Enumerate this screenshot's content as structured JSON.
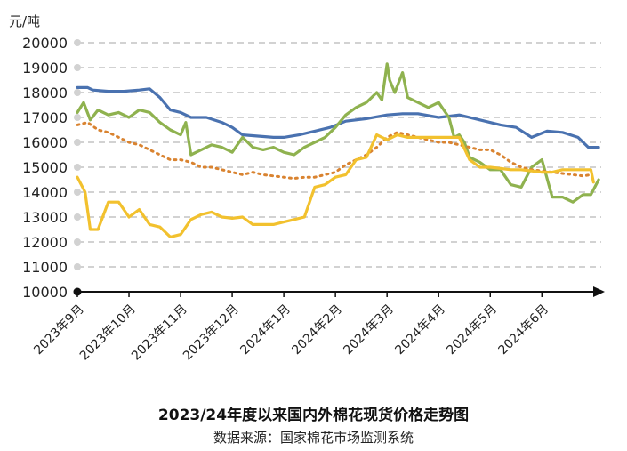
{
  "chart_data": {
    "type": "line",
    "title": "2023/24年度以来国内外棉花现货价格走势图",
    "subtitle": "数据来源：国家棉花市场监测系统",
    "ylabel": "元/吨",
    "ylim": [
      10000,
      20000
    ],
    "yticks": [
      "20000",
      "19000",
      "18000",
      "17000",
      "16000",
      "15000",
      "14000",
      "13000",
      "12000",
      "11000",
      "10000"
    ],
    "xticks": [
      "2023年9月",
      "2023年10月",
      "2023年11月",
      "2023年12月",
      "2024年1月",
      "2024年2月",
      "2024年3月",
      "2024年4月",
      "2024年5月",
      "2024年6月"
    ],
    "x_range": [
      0,
      10.15
    ],
    "grid": true,
    "legend": "none",
    "series": [
      {
        "color": "#4a72b0",
        "style": "solid",
        "x": [
          0,
          0.2,
          0.3,
          0.6,
          0.9,
          1.2,
          1.4,
          1.6,
          1.8,
          2.0,
          2.2,
          2.5,
          2.8,
          3.0,
          3.2,
          3.5,
          3.8,
          4.0,
          4.3,
          4.6,
          4.9,
          5.2,
          5.6,
          6.0,
          6.3,
          6.6,
          7.0,
          7.4,
          7.8,
          8.2,
          8.5,
          8.8,
          9.1,
          9.4,
          9.7,
          9.9,
          10.1
        ],
        "values": [
          18200,
          18200,
          18100,
          18050,
          18050,
          18100,
          18150,
          17800,
          17300,
          17200,
          17000,
          17000,
          16800,
          16600,
          16300,
          16250,
          16200,
          16200,
          16300,
          16450,
          16600,
          16850,
          16950,
          17100,
          17150,
          17150,
          17000,
          17100,
          16900,
          16700,
          16600,
          16200,
          16450,
          16400,
          16200,
          15800,
          15800
        ]
      },
      {
        "color": "#8fb24f",
        "style": "solid",
        "x": [
          0,
          0.12,
          0.25,
          0.4,
          0.6,
          0.8,
          1.0,
          1.2,
          1.4,
          1.6,
          1.8,
          2.0,
          2.1,
          2.2,
          2.4,
          2.6,
          2.8,
          3.0,
          3.2,
          3.4,
          3.6,
          3.8,
          4.0,
          4.2,
          4.4,
          4.6,
          4.8,
          5.0,
          5.2,
          5.4,
          5.6,
          5.8,
          5.9,
          6.0,
          6.05,
          6.15,
          6.3,
          6.4,
          6.6,
          6.8,
          7.0,
          7.2,
          7.3,
          7.4,
          7.5,
          7.6,
          7.8,
          8.0,
          8.2,
          8.4,
          8.6,
          8.8,
          9.0,
          9.2,
          9.4,
          9.6,
          9.8,
          9.95,
          10.1
        ],
        "values": [
          17200,
          17600,
          16900,
          17300,
          17100,
          17200,
          17000,
          17300,
          17200,
          16800,
          16500,
          16300,
          16800,
          15500,
          15700,
          15900,
          15800,
          15600,
          16200,
          15800,
          15700,
          15800,
          15600,
          15500,
          15800,
          16000,
          16200,
          16600,
          17100,
          17400,
          17600,
          18000,
          17700,
          19150,
          18500,
          18000,
          18800,
          17800,
          17600,
          17400,
          17600,
          17000,
          16200,
          16300,
          16000,
          15400,
          15200,
          14900,
          14900,
          14300,
          14200,
          15000,
          15300,
          13800,
          13800,
          13600,
          13900,
          13900,
          14500
        ]
      },
      {
        "color": "#d98330",
        "style": "dotted",
        "x": [
          0,
          0.2,
          0.4,
          0.6,
          0.8,
          1.0,
          1.2,
          1.4,
          1.6,
          1.8,
          2.0,
          2.2,
          2.4,
          2.6,
          2.8,
          3.0,
          3.2,
          3.4,
          3.6,
          3.8,
          4.0,
          4.2,
          4.4,
          4.6,
          4.8,
          5.0,
          5.2,
          5.4,
          5.6,
          5.8,
          6.0,
          6.2,
          6.4,
          6.6,
          6.8,
          7.0,
          7.2,
          7.4,
          7.6,
          7.8,
          8.0,
          8.2,
          8.4,
          8.6,
          8.8,
          9.0,
          9.2,
          9.4,
          9.6,
          9.8,
          9.95
        ],
        "values": [
          16700,
          16800,
          16500,
          16400,
          16200,
          16000,
          15900,
          15700,
          15500,
          15300,
          15300,
          15200,
          15000,
          15000,
          14900,
          14800,
          14700,
          14800,
          14700,
          14650,
          14600,
          14550,
          14600,
          14600,
          14700,
          14800,
          15100,
          15300,
          15500,
          15800,
          16200,
          16400,
          16300,
          16200,
          16100,
          16000,
          16000,
          15900,
          15800,
          15700,
          15700,
          15500,
          15200,
          15000,
          14900,
          14850,
          14800,
          14750,
          14700,
          14650,
          14700
        ]
      },
      {
        "color": "#f2c12e",
        "style": "solid",
        "x": [
          0,
          0.15,
          0.25,
          0.4,
          0.6,
          0.8,
          1.0,
          1.2,
          1.4,
          1.6,
          1.8,
          2.0,
          2.2,
          2.4,
          2.6,
          2.8,
          3.0,
          3.2,
          3.4,
          3.6,
          3.8,
          4.0,
          4.2,
          4.4,
          4.6,
          4.8,
          5.0,
          5.2,
          5.4,
          5.6,
          5.8,
          6.0,
          6.2,
          6.4,
          6.6,
          6.8,
          7.0,
          7.2,
          7.4,
          7.6,
          7.8,
          8.0,
          8.2,
          8.4,
          8.6,
          8.8,
          9.0,
          9.2,
          9.4,
          9.6,
          9.8,
          9.95,
          10.0
        ],
        "values": [
          14600,
          14000,
          12500,
          12500,
          13600,
          13600,
          13000,
          13300,
          12700,
          12600,
          12200,
          12300,
          12900,
          13100,
          13200,
          13000,
          12950,
          13000,
          12700,
          12700,
          12700,
          12800,
          12900,
          13000,
          14200,
          14300,
          14600,
          14700,
          15300,
          15400,
          16300,
          16100,
          16300,
          16200,
          16200,
          16200,
          16200,
          16200,
          16200,
          15300,
          15000,
          15000,
          14950,
          14900,
          14900,
          14850,
          14800,
          14800,
          14900,
          14900,
          14900,
          14900,
          14400
        ]
      }
    ]
  }
}
